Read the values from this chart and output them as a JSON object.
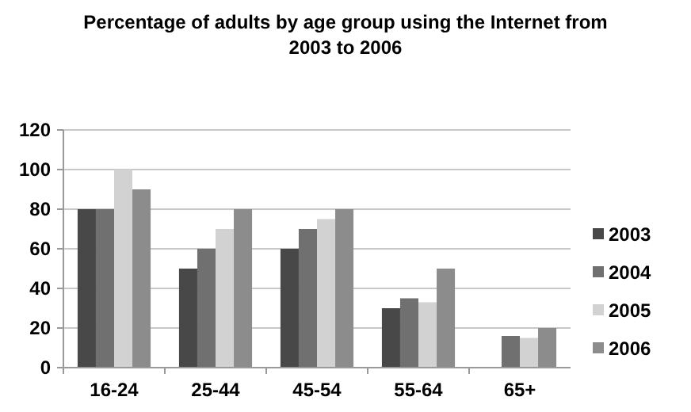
{
  "chart_data": {
    "type": "bar",
    "title": "Percentage of adults by age group using the Internet from 2003 to 2006",
    "categories": [
      "16-24",
      "25-44",
      "45-54",
      "55-64",
      "65+"
    ],
    "series": [
      {
        "name": "2003",
        "color": "#484848",
        "values": [
          80,
          50,
          60,
          30,
          null
        ]
      },
      {
        "name": "2004",
        "color": "#707070",
        "values": [
          80,
          60,
          70,
          35,
          16
        ]
      },
      {
        "name": "2005",
        "color": "#d2d2d2",
        "values": [
          100,
          70,
          75,
          33,
          15
        ]
      },
      {
        "name": "2006",
        "color": "#8c8c8c",
        "values": [
          90,
          80,
          80,
          50,
          20
        ]
      }
    ],
    "ylim": [
      0,
      120
    ],
    "yticks": [
      0,
      20,
      40,
      60,
      80,
      100,
      120
    ],
    "grid": "y",
    "legend": "right"
  }
}
